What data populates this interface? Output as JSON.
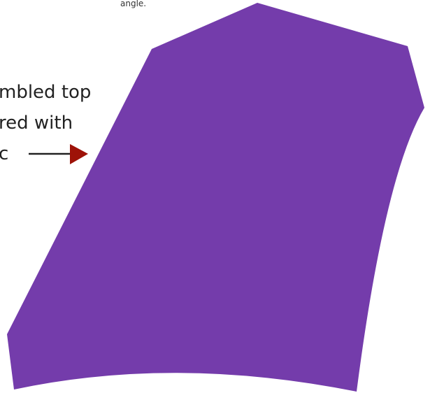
{
  "top_caption": "angle.",
  "callout": {
    "lines": [
      "mbled top",
      "red with",
      "c"
    ]
  },
  "colors": {
    "shape_fill": "#743cab",
    "arrow": "#9e1208",
    "background": "#ffffff",
    "text": "#222222"
  }
}
